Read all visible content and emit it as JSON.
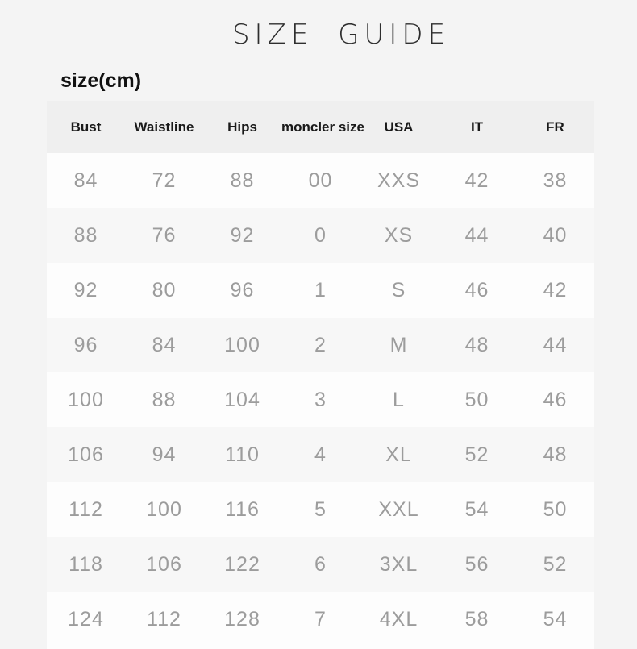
{
  "page": {
    "title": "SIZE GUIDE",
    "subtitle": "size(cm)"
  },
  "table": {
    "columns": [
      "Bust",
      "Waistline",
      "Hips",
      "moncler size",
      "USA",
      "IT",
      "FR"
    ],
    "rows": [
      [
        "84",
        "72",
        "88",
        "00",
        "XXS",
        "42",
        "38"
      ],
      [
        "88",
        "76",
        "92",
        "0",
        "XS",
        "44",
        "40"
      ],
      [
        "92",
        "80",
        "96",
        "1",
        "S",
        "46",
        "42"
      ],
      [
        "96",
        "84",
        "100",
        "2",
        "M",
        "48",
        "44"
      ],
      [
        "100",
        "88",
        "104",
        "3",
        "L",
        "50",
        "46"
      ],
      [
        "106",
        "94",
        "110",
        "4",
        "XL",
        "52",
        "48"
      ],
      [
        "112",
        "100",
        "116",
        "5",
        "XXL",
        "54",
        "50"
      ],
      [
        "118",
        "106",
        "122",
        "6",
        "3XL",
        "56",
        "52"
      ],
      [
        "124",
        "112",
        "128",
        "7",
        "4XL",
        "58",
        "54"
      ]
    ]
  },
  "colors": {
    "page_bg": "#f4f4f4",
    "header_bg": "#efefef",
    "row_bg": "#fdfdfd",
    "row_alt_bg": "#f7f7f7",
    "header_text": "#1a1a1a",
    "cell_text": "#9c9c9c",
    "title_text": "#2e2e2e",
    "subtitle_text": "#111111"
  }
}
